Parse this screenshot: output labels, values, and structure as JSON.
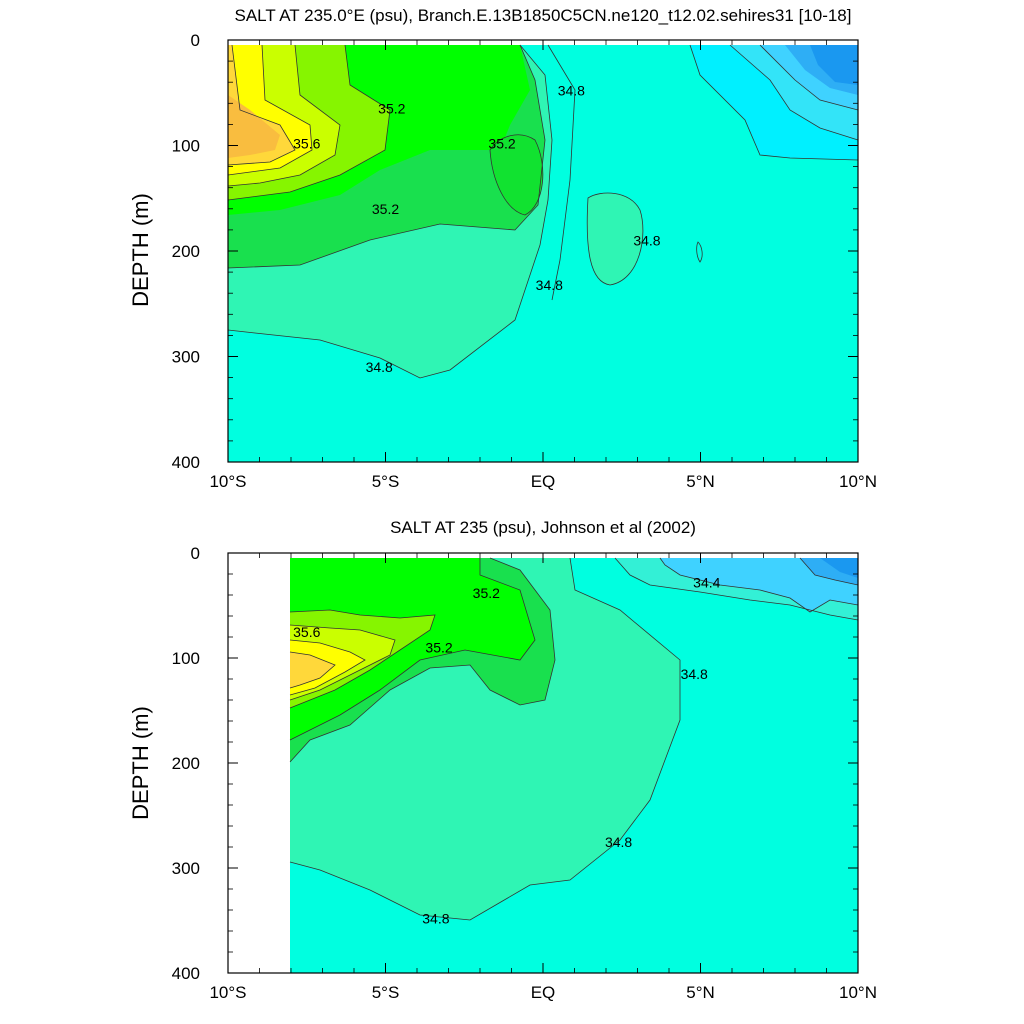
{
  "chart_data": [
    {
      "type": "contour",
      "title": "SALT AT 235.0°E (psu), Branch.E.13B1850C5CN.ne120_t12.02.sehires31 [10-18]",
      "ylabel": "DEPTH (m)",
      "xlabel": "",
      "xlim": [
        -10,
        10
      ],
      "ylim": [
        0,
        400
      ],
      "y_inverted": true,
      "x_ticks": [
        {
          "value": -10,
          "label": "10°S"
        },
        {
          "value": -5,
          "label": "5°S"
        },
        {
          "value": 0,
          "label": "EQ"
        },
        {
          "value": 5,
          "label": "5°N"
        },
        {
          "value": 10,
          "label": "10°N"
        }
      ],
      "y_ticks": [
        0,
        100,
        200,
        300,
        400
      ],
      "contour_labels": [
        {
          "text": "35.2",
          "x": -4.8,
          "y": 65
        },
        {
          "text": "35.6",
          "x": -7.5,
          "y": 98
        },
        {
          "text": "35.2",
          "x": -1.3,
          "y": 98
        },
        {
          "text": "34.8",
          "x": 0.9,
          "y": 48
        },
        {
          "text": "35.2",
          "x": -5.0,
          "y": 160
        },
        {
          "text": "34.8",
          "x": 3.3,
          "y": 190
        },
        {
          "text": "34.8",
          "x": 0.2,
          "y": 232
        },
        {
          "text": "34.8",
          "x": -5.2,
          "y": 310
        }
      ]
    },
    {
      "type": "contour",
      "title": "SALT AT 235 (psu), Johnson et al (2002)",
      "ylabel": "DEPTH (m)",
      "xlabel": "",
      "xlim": [
        -10,
        10
      ],
      "ylim": [
        0,
        400
      ],
      "y_inverted": true,
      "x_ticks": [
        {
          "value": -10,
          "label": "10°S"
        },
        {
          "value": -5,
          "label": "5°S"
        },
        {
          "value": 0,
          "label": "EQ"
        },
        {
          "value": 5,
          "label": "5°N"
        },
        {
          "value": 10,
          "label": "10°N"
        }
      ],
      "y_ticks": [
        0,
        100,
        200,
        300,
        400
      ],
      "contour_labels": [
        {
          "text": "35.2",
          "x": -1.8,
          "y": 38
        },
        {
          "text": "35.6",
          "x": -7.5,
          "y": 75
        },
        {
          "text": "35.2",
          "x": -3.3,
          "y": 90
        },
        {
          "text": "34.4",
          "x": 5.2,
          "y": 28
        },
        {
          "text": "34.8",
          "x": 4.8,
          "y": 115
        },
        {
          "text": "34.8",
          "x": 2.4,
          "y": 275
        },
        {
          "text": "34.8",
          "x": -3.4,
          "y": 348
        }
      ]
    }
  ]
}
